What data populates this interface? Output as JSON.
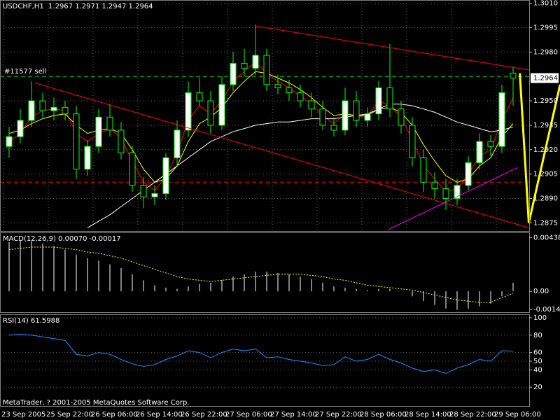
{
  "chart_data": [
    {
      "type": "candlestick",
      "title": "USDCHF,H1  1.2967 1.2971 1.2947 1.2964",
      "categories": [
        "23 Sep 2005",
        null,
        null,
        null,
        "25 Sep 22:00",
        null,
        null,
        null,
        "26 Sep 06:00",
        null,
        null,
        null,
        "26 Sep 14:00",
        null,
        null,
        null,
        "26 Sep 22:00",
        null,
        null,
        null,
        "27 Sep 06:00",
        null,
        null,
        null,
        "27 Sep 14:00",
        null,
        null,
        null,
        "27 Sep 22:00",
        null,
        null,
        null,
        "28 Sep 06:00",
        null,
        null,
        null,
        "28 Sep 14:00",
        null,
        null,
        null,
        "28 Sep 22:00",
        null,
        null,
        null,
        "29 Sep 06:00",
        null
      ],
      "open": [
        1.2922,
        1.2928,
        1.2938,
        1.295,
        1.2944,
        1.2946,
        1.2942,
        1.2908,
        1.2922,
        1.294,
        1.2932,
        1.2918,
        1.2898,
        1.2891,
        1.2893,
        1.2915,
        1.2932,
        1.2955,
        1.295,
        1.2935,
        1.296,
        1.2973,
        1.297,
        1.2978,
        1.296,
        1.2958,
        1.2955,
        1.295,
        1.2945,
        1.2935,
        1.2932,
        1.295,
        1.2938,
        1.2942,
        1.2958,
        1.2945,
        1.2935,
        1.2915,
        1.29,
        1.2896,
        1.289,
        1.2898,
        1.2912,
        1.2925,
        1.2922,
        1.2967
      ],
      "high": [
        1.2934,
        1.2945,
        1.2962,
        1.2955,
        1.2952,
        1.295,
        1.2947,
        1.2926,
        1.2945,
        1.2948,
        1.2937,
        1.2922,
        1.2903,
        1.2898,
        1.2918,
        1.2938,
        1.2962,
        1.2964,
        1.2956,
        1.2965,
        1.298,
        1.2982,
        1.2997,
        1.2982,
        1.2966,
        1.2963,
        1.296,
        1.2955,
        1.295,
        1.294,
        1.2958,
        1.2956,
        1.2946,
        1.2962,
        1.2985,
        1.295,
        1.294,
        1.292,
        1.2906,
        1.2902,
        1.2902,
        1.2916,
        1.293,
        1.2929,
        1.296,
        1.2971
      ],
      "low": [
        1.2915,
        1.2924,
        1.2934,
        1.294,
        1.2938,
        1.2938,
        1.2902,
        1.2904,
        1.2918,
        1.2928,
        1.2914,
        1.2894,
        1.2884,
        1.2886,
        1.2889,
        1.291,
        1.2928,
        1.2947,
        1.293,
        1.2932,
        1.2956,
        1.2965,
        1.2966,
        1.2956,
        1.2954,
        1.295,
        1.2946,
        1.294,
        1.2932,
        1.2928,
        1.2929,
        1.2934,
        1.2934,
        1.2938,
        1.294,
        1.293,
        1.291,
        1.2894,
        1.289,
        1.2883,
        1.2886,
        1.2895,
        1.2908,
        1.2916,
        1.2918,
        1.2947
      ],
      "close": [
        1.2928,
        1.2938,
        1.295,
        1.2944,
        1.2946,
        1.2942,
        1.2908,
        1.2922,
        1.294,
        1.2932,
        1.2918,
        1.2898,
        1.2891,
        1.2893,
        1.2915,
        1.2932,
        1.2955,
        1.295,
        1.2935,
        1.296,
        1.2973,
        1.297,
        1.2978,
        1.296,
        1.2958,
        1.2955,
        1.295,
        1.2945,
        1.2935,
        1.2932,
        1.295,
        1.2938,
        1.2942,
        1.2958,
        1.2945,
        1.2935,
        1.2915,
        1.29,
        1.2896,
        1.289,
        1.2898,
        1.2912,
        1.2925,
        1.2922,
        1.2955,
        1.2964
      ],
      "bull_color": "#ffffff",
      "bear_color": "#000000",
      "wick_color": "#00ff00",
      "series": [
        {
          "color": "#ff0000",
          "values": [
            1.2925,
            1.293,
            1.294,
            1.2944,
            1.2945,
            1.2944,
            1.293,
            1.2925,
            1.293,
            1.2933,
            1.2927,
            1.2913,
            1.29,
            1.2895,
            1.2903,
            1.2918,
            1.2938,
            1.2947,
            1.2942,
            1.295,
            1.2962,
            1.2968,
            1.2974,
            1.2967,
            1.2962,
            1.2958,
            1.2953,
            1.2948,
            1.2941,
            1.2936,
            1.2942,
            1.294,
            1.2941,
            1.295,
            1.2947,
            1.294,
            1.2926,
            1.291,
            1.2902,
            1.2894,
            1.2896,
            1.2905,
            1.2916,
            1.292,
            1.2938,
            1.2952
          ]
        },
        {
          "color": "#ffff00",
          "values": [
            1.293,
            1.2932,
            1.2936,
            1.2939,
            1.2941,
            1.2942,
            1.2935,
            1.293,
            1.2932,
            1.2933,
            1.293,
            1.292,
            1.2908,
            1.29,
            1.2902,
            1.291,
            1.2925,
            1.2936,
            1.294,
            1.2946,
            1.2955,
            1.2962,
            1.2968,
            1.2967,
            1.2964,
            1.2961,
            1.2957,
            1.2952,
            1.2946,
            1.2941,
            1.2942,
            1.2941,
            1.2941,
            1.2945,
            1.2946,
            1.2943,
            1.2935,
            1.2923,
            1.2913,
            1.2904,
            1.29,
            1.2902,
            1.291,
            1.2915,
            1.2928,
            1.2936
          ]
        },
        {
          "color": "#ffffff",
          "values": [
            null,
            null,
            null,
            null,
            null,
            null,
            null,
            1.2872,
            1.2876,
            1.288,
            1.2885,
            1.289,
            1.2895,
            1.29,
            1.2905,
            1.291,
            1.2915,
            1.292,
            1.2925,
            1.2928,
            1.2931,
            1.2933,
            1.2935,
            1.2936,
            1.2937,
            1.2937,
            1.2938,
            1.2939,
            1.2939,
            1.2939,
            1.294,
            1.2941,
            1.2942,
            1.2945,
            1.2948,
            1.2948,
            1.2947,
            1.2945,
            1.2943,
            1.294,
            1.2937,
            1.2935,
            1.2933,
            1.2931,
            1.2932,
            1.2934
          ]
        }
      ],
      "lines": [
        {
          "color": "#ff0000",
          "width": 1,
          "x": [
            22,
            46.4
          ],
          "values": [
            1.2996,
            1.2969
          ]
        },
        {
          "color": "#ff0000",
          "width": 1,
          "x": [
            2.3,
            46.4
          ],
          "values": [
            1.2961,
            1.2872
          ]
        },
        {
          "color": "#ff00ff",
          "width": 1,
          "x": [
            33.9,
            45.4
          ],
          "values": [
            1.2871,
            1.2909
          ]
        },
        {
          "color": "#ffff00",
          "width": 3,
          "x": [
            45.6,
            46.4,
            49.2
          ],
          "values": [
            1.2967,
            1.2875,
            1.296
          ]
        }
      ],
      "hlines": [
        {
          "value": 1.29,
          "color": "#ff0000"
        },
        {
          "value": 1.2965,
          "color": "#00c000",
          "label": "#11577 sell"
        }
      ],
      "last_price": 1.2964,
      "ylim": [
        1.287,
        1.3012
      ],
      "yticks": [
        {
          "value": 1.301,
          "label": "1.3010"
        },
        1.2995,
        {
          "value": 1.298,
          "label": "1.2980"
        },
        {
          "value": 1.295,
          "label": "1.2950"
        },
        1.2935,
        {
          "value": 1.292,
          "label": "1.2920"
        },
        1.2905,
        {
          "value": 1.289,
          "label": "1.2890"
        },
        1.2875
      ],
      "grid": true
    },
    {
      "type": "macd",
      "title": "MACD(12,26,9) 0.00070 -0.00017",
      "series": [
        {
          "color": "#ffffff",
          "values": [
            0.004,
            0.0041,
            0.0041,
            0.0039,
            0.0037,
            0.0034,
            0.003,
            0.0027,
            0.0025,
            0.0022,
            0.0019,
            0.0014,
            0.0009,
            0.0005,
            0.0003,
            0.0002,
            0.0004,
            0.0006,
            0.0007,
            0.0009,
            0.0012,
            0.0014,
            0.0016,
            0.0016,
            0.0015,
            0.0014,
            0.0012,
            0.001,
            0.0007,
            0.0004,
            0.0003,
            0.0002,
            0.0001,
            0.0002,
            0.0002,
            0.0,
            -0.0004,
            -0.0008,
            -0.0011,
            -0.0014,
            -0.0015,
            -0.0014,
            -0.0012,
            -0.001,
            -0.0004,
            0.0007
          ]
        },
        {
          "color": "#ffff00",
          "values": [
            0.0034,
            0.0035,
            0.0036,
            0.0036,
            0.0036,
            0.0035,
            0.0034,
            0.0032,
            0.0031,
            0.0029,
            0.0027,
            0.0024,
            0.0021,
            0.0018,
            0.0015,
            0.0012,
            0.001,
            0.0009,
            0.0008,
            0.0009,
            0.001,
            0.0011,
            0.0012,
            0.0013,
            0.0014,
            0.0014,
            0.0014,
            0.0013,
            0.0012,
            0.001,
            0.0009,
            0.0007,
            0.0005,
            0.0004,
            0.0003,
            0.0002,
            0.0001,
            -0.0001,
            -0.0003,
            -0.0005,
            -0.0007,
            -0.0008,
            -0.0009,
            -0.0009,
            -0.0005,
            -0.00017
          ]
        }
      ],
      "ylim": [
        -0.0017,
        0.0048
      ],
      "yticks": [
        0.00438,
        {
          "value": 0,
          "label": "0.00"
        },
        -0.00148
      ]
    },
    {
      "type": "line",
      "title": "RSI(14) 61.5988",
      "series": [
        {
          "color": "#1e90ff",
          "values": [
            80,
            81,
            80,
            78,
            76,
            74,
            58,
            56,
            60,
            58,
            52,
            47,
            44,
            46,
            52,
            56,
            62,
            60,
            54,
            60,
            64,
            62,
            64,
            54,
            55,
            52,
            50,
            48,
            45,
            46,
            55,
            50,
            52,
            58,
            52,
            48,
            42,
            38,
            40,
            36,
            42,
            46,
            52,
            50,
            62,
            61.5988
          ]
        }
      ],
      "ylim": [
        -1.6,
        104
      ],
      "yticks": [
        100,
        80,
        60,
        50,
        40,
        20
      ],
      "grid": true,
      "annotation": "MetaTrader, ? 2001-2005 MetaQuotes Software Corp."
    }
  ]
}
